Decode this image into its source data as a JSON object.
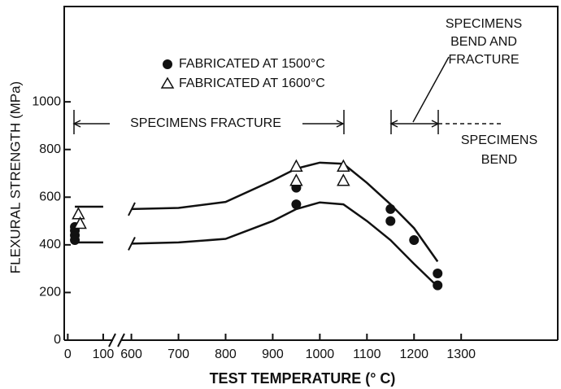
{
  "chart_data": {
    "type": "scatter",
    "xlabel": "TEST TEMPERATURE (° C)",
    "ylabel": "FLEXURAL STRENGTH (MPa)",
    "xlim": [
      -10,
      1505
    ],
    "x_break": [
      130,
      580
    ],
    "ylim": [
      0,
      1400
    ],
    "xticks": [
      0,
      100,
      600,
      700,
      800,
      900,
      1000,
      1100,
      1200,
      1300
    ],
    "yticks": [
      0,
      200,
      400,
      600,
      800,
      1000
    ],
    "series": [
      {
        "name": "FABRICATED AT 1500°C",
        "marker": "circle",
        "color": "#111111",
        "x": [
          20,
          20,
          20,
          20,
          950,
          950,
          1150,
          1150,
          1200,
          1250,
          1250
        ],
        "values": [
          420,
          440,
          460,
          475,
          640,
          570,
          550,
          500,
          420,
          280,
          230
        ]
      },
      {
        "name": "FABRICATED AT 1600°C",
        "marker": "triangle",
        "color": "#111111",
        "x": [
          30,
          35,
          950,
          950,
          1050,
          1050
        ],
        "values": [
          530,
          490,
          730,
          670,
          730,
          670
        ]
      }
    ],
    "curves": [
      {
        "x": [
          20,
          100,
          600,
          700,
          800,
          900,
          950,
          1000,
          1050,
          1100,
          1150,
          1200,
          1250
        ],
        "values": [
          560,
          560,
          550,
          555,
          580,
          670,
          720,
          745,
          740,
          660,
          570,
          470,
          330
        ]
      },
      {
        "x": [
          20,
          100,
          600,
          700,
          800,
          900,
          950,
          1000,
          1050,
          1100,
          1150,
          1200,
          1250
        ],
        "values": [
          410,
          410,
          405,
          410,
          425,
          500,
          550,
          578,
          570,
          500,
          420,
          320,
          225
        ]
      }
    ],
    "annotations": [
      "SPECIMENS FRACTURE",
      "SPECIMENS",
      "BEND AND",
      "FRACTURE",
      "SPECIMENS",
      "BEND"
    ]
  }
}
